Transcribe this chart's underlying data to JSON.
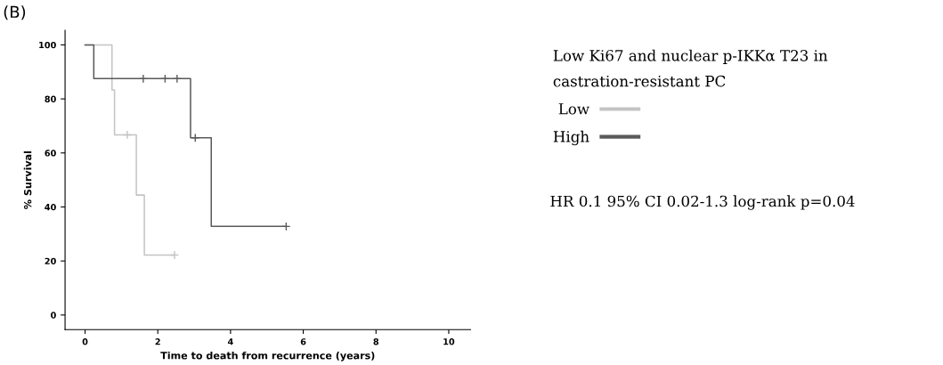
{
  "chart_data": {
    "type": "step",
    "xlabel": "Time to death from recurrence (years)",
    "ylabel": "% Survival",
    "legend_title": "Low Ki67 and nuclear p-IKKα T23 in\ncastration-resistant PC",
    "series": [
      {
        "name": "Low",
        "color": "#c4c4c4",
        "x": [
          0,
          0.74,
          0.81,
          1.41,
          1.63,
          2.46
        ],
        "values": [
          100,
          83.3,
          66.7,
          44.4,
          22.2,
          22.2
        ]
      },
      {
        "name": "High",
        "color": "#5a5a5a",
        "x": [
          0,
          0.24,
          2.9,
          3.47,
          5.53
        ],
        "values": [
          100,
          87.5,
          65.6,
          32.8,
          32.8
        ]
      },
      {
        "type": "scatter",
        "marker": "cross",
        "color": "#c4c4c4",
        "x": [
          1.16,
          2.46
        ],
        "values": [
          66.7,
          22.2
        ]
      },
      {
        "type": "scatter",
        "marker": "cross",
        "color": "#5a5a5a",
        "x": [
          1.6,
          2.2,
          2.53,
          3.03,
          5.53
        ],
        "values": [
          87.5,
          87.5,
          87.5,
          65.6,
          32.8
        ]
      }
    ],
    "xlim": [
      -0.55,
      10.6
    ],
    "xticks": [
      0,
      2,
      4,
      6,
      8,
      10
    ],
    "ylim": [
      -5.4,
      105.4
    ],
    "yticks": [
      0,
      20,
      40,
      60,
      80,
      100
    ],
    "grid": false,
    "legend": "right",
    "annotations": [
      "(B)",
      "HR 0.1 95% CI 0.02-1.3 log-rank p=0.04"
    ]
  }
}
